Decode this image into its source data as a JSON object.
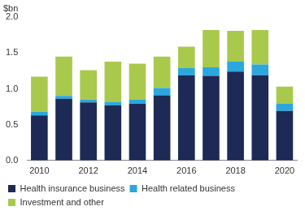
{
  "chart_data": {
    "type": "bar",
    "stacked": true,
    "grid": false,
    "legend": "bottom",
    "y_label": "$bn",
    "categories": [
      "2010",
      null,
      "2012",
      null,
      "2014",
      null,
      "2016",
      null,
      "2018",
      null,
      "2020"
    ],
    "series": [
      {
        "name": "Health insurance business",
        "color": "#1d2a55",
        "values": [
          0.63,
          0.86,
          0.81,
          0.77,
          0.79,
          0.91,
          1.19,
          1.18,
          1.24,
          1.19,
          0.69
        ]
      },
      {
        "name": "Health related business",
        "color": "#2aa7df",
        "values": [
          0.05,
          0.04,
          0.04,
          0.05,
          0.06,
          0.1,
          0.1,
          0.12,
          0.14,
          0.15,
          0.1
        ]
      },
      {
        "name": "Investment and other",
        "color": "#a9c94c",
        "values": [
          0.49,
          0.55,
          0.41,
          0.56,
          0.5,
          0.44,
          0.3,
          0.52,
          0.43,
          0.48,
          0.24
        ]
      }
    ],
    "ylim": [
      0,
      2
    ],
    "yticks": [
      {
        "value": 0,
        "label": "0.0"
      },
      {
        "value": 0.5,
        "label": "0.5"
      },
      {
        "value": 1,
        "label": "1.0"
      },
      {
        "value": 1.5,
        "label": "1.5"
      },
      {
        "value": 2,
        "label": "2.0"
      }
    ]
  }
}
